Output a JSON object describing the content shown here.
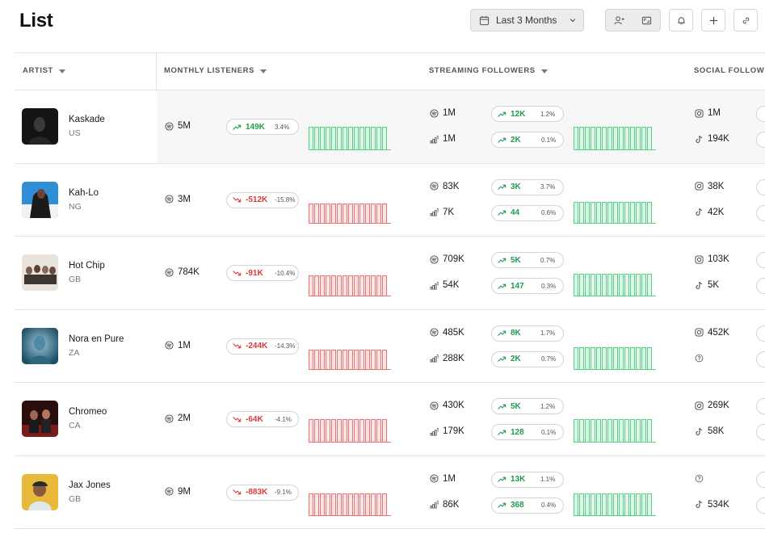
{
  "page": {
    "title": "List"
  },
  "toolbar": {
    "date_range": "Last 3 Months"
  },
  "columns": {
    "artist": "ARTIST",
    "monthly": "MONTHLY LISTENERS",
    "streaming": "STREAMING FOLLOWERS",
    "social": "SOCIAL FOLLOW"
  },
  "colors": {
    "up": "#1f9d4c",
    "down": "#d83a3a"
  },
  "rows": [
    {
      "name": "Kaskade",
      "country": "US",
      "highlight": true,
      "avatar": "portrait-dark",
      "monthly": {
        "value": "5M",
        "trend": "up",
        "change": "149K",
        "pct": "3.4%",
        "spark": [
          0.95,
          0.95,
          0.95,
          0.95,
          0.95,
          0.95,
          0.95,
          0.95,
          0.95,
          0.95,
          0.95,
          0.95,
          0.95,
          0.95
        ]
      },
      "spotify": {
        "value": "1M",
        "trend": "up",
        "change": "12K",
        "pct": "1.2%"
      },
      "deezer": {
        "value": "1M",
        "trend": "up",
        "change": "2K",
        "pct": "0.1%"
      },
      "stream_spark": {
        "trend": "up",
        "values": [
          0.95,
          0.95,
          0.95,
          0.95,
          0.95,
          0.95,
          0.95,
          0.95,
          0.95,
          0.95,
          0.95,
          0.95,
          0.95,
          0.95
        ]
      },
      "instagram": {
        "value": "1M"
      },
      "tiktok": {
        "value": "194K"
      }
    },
    {
      "name": "Kah-Lo",
      "country": "NG",
      "highlight": false,
      "avatar": "portrait-blue",
      "monthly": {
        "value": "3M",
        "trend": "down",
        "change": "-512K",
        "pct": "-15.8%",
        "spark": [
          0.8,
          0.8,
          0.8,
          0.8,
          0.8,
          0.8,
          0.8,
          0.8,
          0.8,
          0.8,
          0.8,
          0.8,
          0.8,
          0.8
        ]
      },
      "spotify": {
        "value": "83K",
        "trend": "up",
        "change": "3K",
        "pct": "3.7%"
      },
      "deezer": {
        "value": "7K",
        "trend": "up",
        "change": "44",
        "pct": "0.6%"
      },
      "stream_spark": {
        "trend": "up",
        "values": [
          0.85,
          0.85,
          0.85,
          0.85,
          0.85,
          0.85,
          0.85,
          0.85,
          0.85,
          0.85,
          0.85,
          0.85,
          0.85,
          0.85
        ]
      },
      "instagram": {
        "value": "38K"
      },
      "tiktok": {
        "value": "42K"
      }
    },
    {
      "name": "Hot Chip",
      "country": "GB",
      "highlight": false,
      "avatar": "group-light",
      "monthly": {
        "value": "784K",
        "trend": "down",
        "change": "-91K",
        "pct": "-10.4%",
        "spark": [
          0.85,
          0.85,
          0.85,
          0.85,
          0.85,
          0.85,
          0.85,
          0.85,
          0.85,
          0.85,
          0.85,
          0.85,
          0.85,
          0.85
        ]
      },
      "spotify": {
        "value": "709K",
        "trend": "up",
        "change": "5K",
        "pct": "0.7%"
      },
      "deezer": {
        "value": "54K",
        "trend": "up",
        "change": "147",
        "pct": "0.3%"
      },
      "stream_spark": {
        "trend": "up",
        "values": [
          0.9,
          0.9,
          0.9,
          0.9,
          0.9,
          0.9,
          0.9,
          0.9,
          0.9,
          0.9,
          0.9,
          0.9,
          0.9,
          0.9
        ]
      },
      "instagram": {
        "value": "103K"
      },
      "tiktok": {
        "value": "5K"
      }
    },
    {
      "name": "Nora en Pure",
      "country": "ZA",
      "highlight": false,
      "avatar": "portrait-teal",
      "monthly": {
        "value": "1M",
        "trend": "down",
        "change": "-244K",
        "pct": "-14.3%",
        "spark": [
          0.8,
          0.8,
          0.8,
          0.8,
          0.8,
          0.8,
          0.8,
          0.8,
          0.8,
          0.8,
          0.8,
          0.8,
          0.8,
          0.8
        ]
      },
      "spotify": {
        "value": "485K",
        "trend": "up",
        "change": "8K",
        "pct": "1.7%"
      },
      "deezer": {
        "value": "288K",
        "trend": "up",
        "change": "2K",
        "pct": "0.7%"
      },
      "stream_spark": {
        "trend": "up",
        "values": [
          0.9,
          0.9,
          0.9,
          0.9,
          0.9,
          0.9,
          0.9,
          0.9,
          0.9,
          0.9,
          0.9,
          0.9,
          0.9,
          0.9
        ]
      },
      "instagram": {
        "value": "452K"
      },
      "tiktok": {
        "value": ""
      }
    },
    {
      "name": "Chromeo",
      "country": "CA",
      "highlight": false,
      "avatar": "duo-red",
      "monthly": {
        "value": "2M",
        "trend": "down",
        "change": "-64K",
        "pct": "-4.1%",
        "spark": [
          0.95,
          0.95,
          0.95,
          0.95,
          0.95,
          0.95,
          0.95,
          0.95,
          0.95,
          0.95,
          0.95,
          0.95,
          0.95,
          0.95
        ]
      },
      "spotify": {
        "value": "430K",
        "trend": "up",
        "change": "5K",
        "pct": "1.2%"
      },
      "deezer": {
        "value": "179K",
        "trend": "up",
        "change": "128",
        "pct": "0.1%"
      },
      "stream_spark": {
        "trend": "up",
        "values": [
          0.95,
          0.95,
          0.95,
          0.95,
          0.95,
          0.95,
          0.95,
          0.95,
          0.95,
          0.95,
          0.95,
          0.95,
          0.95,
          0.95
        ]
      },
      "instagram": {
        "value": "269K"
      },
      "tiktok": {
        "value": "58K"
      }
    },
    {
      "name": "Jax Jones",
      "country": "GB",
      "highlight": false,
      "avatar": "portrait-gold",
      "monthly": {
        "value": "9M",
        "trend": "down",
        "change": "-883K",
        "pct": "-9.1%",
        "spark": [
          0.9,
          0.9,
          0.9,
          0.9,
          0.9,
          0.9,
          0.9,
          0.9,
          0.9,
          0.9,
          0.9,
          0.9,
          0.9,
          0.9
        ]
      },
      "spotify": {
        "value": "1M",
        "trend": "up",
        "change": "13K",
        "pct": "1.1%"
      },
      "deezer": {
        "value": "86K",
        "trend": "up",
        "change": "368",
        "pct": "0.4%"
      },
      "stream_spark": {
        "trend": "up",
        "values": [
          0.9,
          0.9,
          0.9,
          0.9,
          0.9,
          0.9,
          0.9,
          0.9,
          0.9,
          0.9,
          0.9,
          0.9,
          0.9,
          0.9
        ]
      },
      "instagram": {
        "value": ""
      },
      "tiktok": {
        "value": "534K"
      }
    }
  ]
}
